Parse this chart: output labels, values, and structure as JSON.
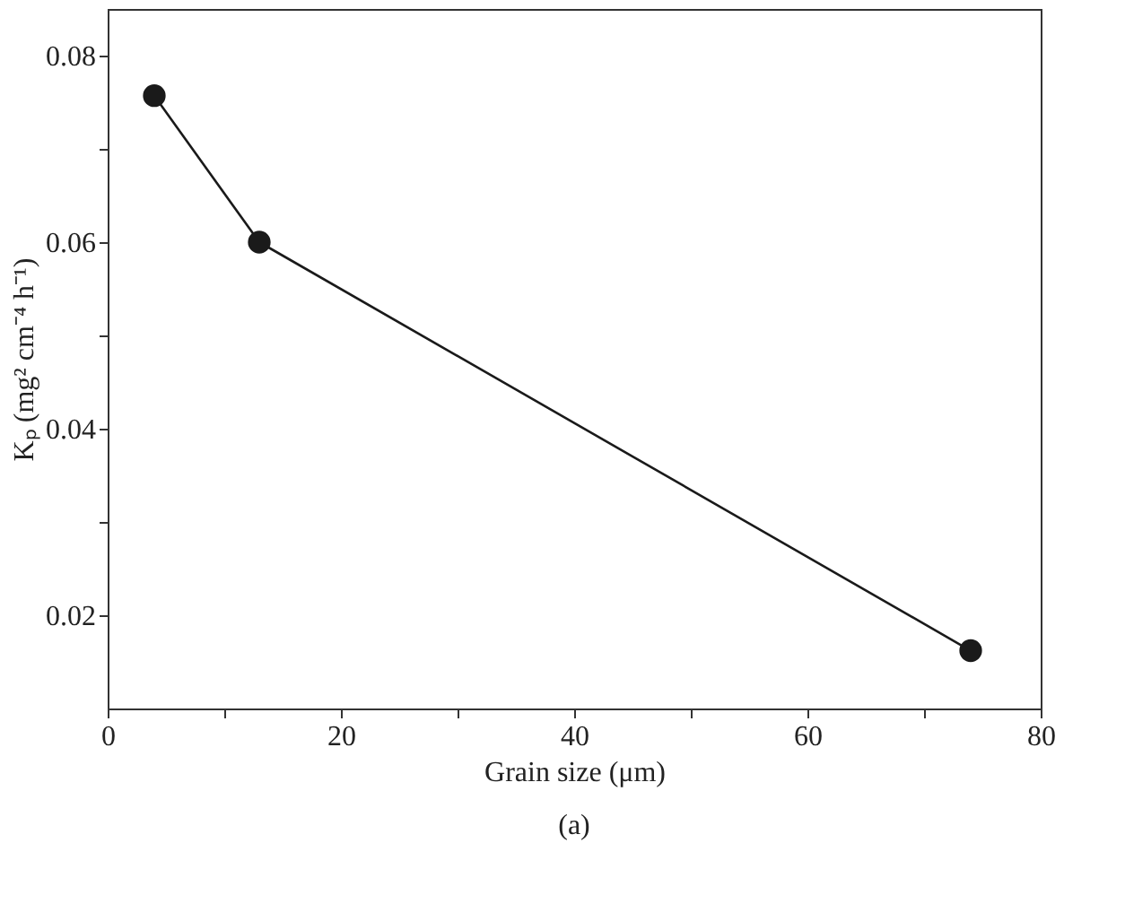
{
  "chart_data": {
    "type": "line",
    "xlabel": "Grain size (μm)",
    "ylabel": "Kₚ (mg² cm⁻⁴ h⁻¹)",
    "x": [
      4,
      13,
      74
    ],
    "series": [
      {
        "color": "#1a1a1a",
        "values": [
          0.0757,
          0.06,
          0.0162
        ]
      }
    ],
    "marker": "circle",
    "line_style": "solid",
    "xlim": [
      0,
      80
    ],
    "xticks": [
      0,
      {
        "value": 10,
        "label": null
      },
      20,
      {
        "value": 30,
        "label": null
      },
      40,
      {
        "value": 50,
        "label": null
      },
      60,
      {
        "value": 70,
        "label": null
      },
      80
    ],
    "ylim": [
      0.01,
      0.085
    ],
    "yticks": [
      0.02,
      {
        "value": 0.03,
        "label": null
      },
      0.04,
      {
        "value": 0.05,
        "label": null
      },
      0.06,
      {
        "value": 0.07,
        "label": null
      },
      0.08
    ],
    "grid": false,
    "annotations": [
      "(a)"
    ]
  }
}
